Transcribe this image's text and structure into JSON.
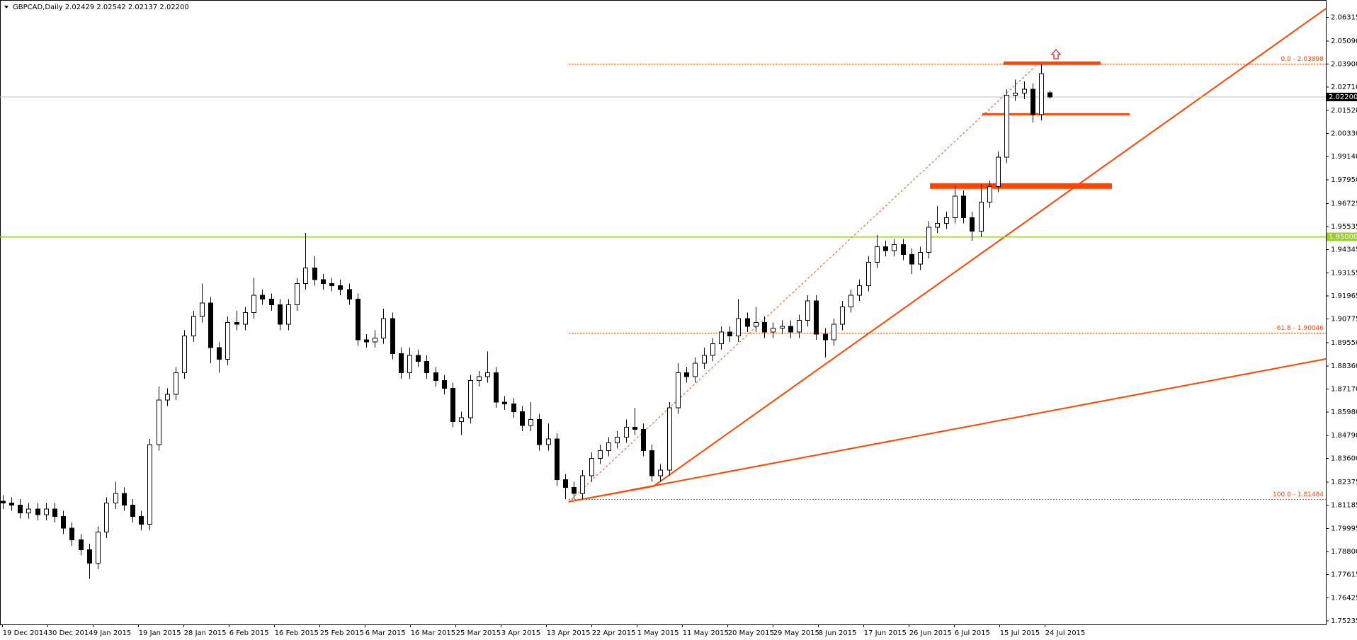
{
  "chart_data": {
    "type": "candlestick",
    "title": "GBPCAD,Daily  2.02429 2.02542 2.02137 2.02200",
    "xtick_labels": [
      "19 Dec 2014",
      "30 Dec 2014",
      "9 Jan 2015",
      "19 Jan 2015",
      "28 Jan 2015",
      "6 Feb 2015",
      "16 Feb 2015",
      "25 Feb 2015",
      "6 Mar 2015",
      "16 Mar 2015",
      "25 Mar 2015",
      "3 Apr 2015",
      "13 Apr 2015",
      "22 Apr 2015",
      "1 May 2015",
      "11 May 2015",
      "20 May 2015",
      "29 May 2015",
      "8 Jun 2015",
      "17 Jun 2015",
      "26 Jun 2015",
      "6 Jul 2015",
      "15 Jul 2015",
      "24 Jul 2015"
    ],
    "open": [
      1.814,
      1.813,
      1.812,
      1.808,
      1.81,
      1.807,
      1.81,
      1.806,
      1.8,
      1.794,
      1.789,
      1.782,
      1.798,
      1.813,
      1.818,
      1.812,
      1.806,
      1.802,
      1.843,
      1.866,
      1.869,
      1.88,
      1.899,
      1.909,
      1.916,
      1.893,
      1.887,
      1.906,
      1.905,
      1.911,
      1.92,
      1.918,
      1.915,
      1.905,
      1.915,
      1.926,
      1.934,
      1.928,
      1.926,
      1.925,
      1.923,
      1.918,
      1.897,
      1.896,
      1.898,
      1.908,
      1.89,
      1.88,
      1.889,
      1.886,
      1.88,
      1.876,
      1.872,
      1.855,
      1.857,
      1.876,
      1.878,
      1.88,
      1.865,
      1.864,
      1.86,
      1.853,
      1.856,
      1.843,
      1.846,
      1.825,
      1.821,
      1.818,
      1.827,
      1.836,
      1.84,
      1.844,
      1.847,
      1.852,
      1.851,
      1.84,
      1.827,
      1.83,
      1.862,
      1.88,
      1.878,
      1.885,
      1.889,
      1.895,
      1.901,
      1.899,
      1.908,
      1.904,
      1.906,
      1.901,
      1.903,
      1.904,
      1.901,
      1.907,
      1.917,
      1.9,
      1.897,
      1.905,
      1.914,
      1.92,
      1.925,
      1.937,
      1.945,
      1.943,
      1.946,
      1.941,
      1.936,
      1.942,
      1.955,
      1.957,
      1.96,
      1.971,
      1.96,
      1.953,
      1.968,
      1.976,
      1.991,
      2.023,
      2.024,
      2.026,
      2.013,
      2.02429
    ],
    "high": [
      1.817,
      1.816,
      1.815,
      1.813,
      1.813,
      1.813,
      1.813,
      1.809,
      1.803,
      1.797,
      1.792,
      1.801,
      1.816,
      1.824,
      1.821,
      1.815,
      1.809,
      1.846,
      1.873,
      1.872,
      1.883,
      1.902,
      1.912,
      1.926,
      1.919,
      1.896,
      1.909,
      1.912,
      1.914,
      1.929,
      1.923,
      1.921,
      1.918,
      1.918,
      1.929,
      1.952,
      1.94,
      1.931,
      1.929,
      1.928,
      1.926,
      1.921,
      1.9,
      1.902,
      1.913,
      1.911,
      1.893,
      1.893,
      1.892,
      1.889,
      1.883,
      1.879,
      1.875,
      1.86,
      1.879,
      1.881,
      1.891,
      1.883,
      1.868,
      1.867,
      1.863,
      1.865,
      1.859,
      1.854,
      1.849,
      1.828,
      1.824,
      1.83,
      1.839,
      1.843,
      1.847,
      1.85,
      1.856,
      1.862,
      1.854,
      1.843,
      1.833,
      1.865,
      1.885,
      1.883,
      1.888,
      1.893,
      1.898,
      1.904,
      1.904,
      1.918,
      1.911,
      1.914,
      1.909,
      1.906,
      1.907,
      1.907,
      1.91,
      1.92,
      1.92,
      1.903,
      1.908,
      1.917,
      1.923,
      1.928,
      1.94,
      1.951,
      1.948,
      1.949,
      1.949,
      1.944,
      1.945,
      1.958,
      1.966,
      1.963,
      1.976,
      1.974,
      1.963,
      1.977,
      1.979,
      1.994,
      2.026,
      2.031,
      2.03,
      2.029,
      2.039,
      2.02542
    ],
    "low": [
      1.81,
      1.809,
      1.805,
      1.805,
      1.804,
      1.804,
      1.803,
      1.797,
      1.791,
      1.786,
      1.774,
      1.779,
      1.795,
      1.81,
      1.809,
      1.803,
      1.799,
      1.799,
      1.84,
      1.863,
      1.866,
      1.877,
      1.896,
      1.906,
      1.885,
      1.88,
      1.884,
      1.902,
      1.902,
      1.908,
      1.915,
      1.912,
      1.902,
      1.902,
      1.912,
      1.923,
      1.925,
      1.923,
      1.922,
      1.92,
      1.915,
      1.894,
      1.893,
      1.893,
      1.895,
      1.887,
      1.877,
      1.877,
      1.883,
      1.877,
      1.873,
      1.869,
      1.852,
      1.848,
      1.854,
      1.873,
      1.875,
      1.862,
      1.861,
      1.857,
      1.85,
      1.85,
      1.84,
      1.84,
      1.822,
      1.815,
      1.815,
      1.815,
      1.824,
      1.833,
      1.837,
      1.841,
      1.844,
      1.848,
      1.837,
      1.824,
      1.824,
      1.827,
      1.859,
      1.875,
      1.875,
      1.882,
      1.886,
      1.892,
      1.896,
      1.896,
      1.901,
      1.901,
      1.898,
      1.898,
      1.9,
      1.898,
      1.898,
      1.904,
      1.897,
      1.888,
      1.894,
      1.902,
      1.911,
      1.917,
      1.922,
      1.934,
      1.94,
      1.94,
      1.938,
      1.931,
      1.933,
      1.939,
      1.952,
      1.954,
      1.957,
      1.957,
      1.948,
      1.95,
      1.965,
      1.973,
      1.988,
      2.02,
      2.021,
      2.009,
      2.01,
      2.02137
    ],
    "close": [
      1.813,
      1.812,
      1.808,
      1.81,
      1.807,
      1.81,
      1.806,
      1.8,
      1.794,
      1.789,
      1.782,
      1.798,
      1.813,
      1.818,
      1.812,
      1.806,
      1.802,
      1.843,
      1.866,
      1.869,
      1.88,
      1.899,
      1.909,
      1.916,
      1.893,
      1.887,
      1.906,
      1.905,
      1.911,
      1.92,
      1.918,
      1.915,
      1.905,
      1.915,
      1.926,
      1.934,
      1.928,
      1.926,
      1.925,
      1.923,
      1.918,
      1.897,
      1.896,
      1.898,
      1.908,
      1.89,
      1.88,
      1.889,
      1.886,
      1.88,
      1.876,
      1.872,
      1.855,
      1.857,
      1.876,
      1.878,
      1.88,
      1.865,
      1.864,
      1.86,
      1.853,
      1.856,
      1.843,
      1.846,
      1.825,
      1.821,
      1.818,
      1.827,
      1.836,
      1.84,
      1.844,
      1.847,
      1.852,
      1.851,
      1.84,
      1.827,
      1.83,
      1.862,
      1.88,
      1.878,
      1.885,
      1.889,
      1.895,
      1.901,
      1.899,
      1.908,
      1.904,
      1.906,
      1.901,
      1.903,
      1.904,
      1.901,
      1.907,
      1.917,
      1.9,
      1.897,
      1.905,
      1.914,
      1.92,
      1.925,
      1.937,
      1.945,
      1.943,
      1.946,
      1.941,
      1.936,
      1.942,
      1.955,
      1.957,
      1.96,
      1.971,
      1.96,
      1.953,
      1.968,
      1.976,
      1.991,
      2.023,
      2.024,
      2.026,
      2.013,
      2.034,
      2.022
    ],
    "ylim": [
      1.7505,
      2.072
    ],
    "yticks": [
      {
        "value": 2.06315,
        "label": "2.06315"
      },
      {
        "value": 2.0509,
        "label": "2.05090"
      },
      {
        "value": 2.039,
        "label": "2.03900"
      },
      {
        "value": 2.0271,
        "label": "2.02710"
      },
      {
        "value": 2.0152,
        "label": "2.01520"
      },
      {
        "value": 2.0033,
        "label": "2.00330"
      },
      {
        "value": 1.9914,
        "label": "1.99140"
      },
      {
        "value": 1.9795,
        "label": "1.97950"
      },
      {
        "value": 1.96725,
        "label": "1.96725"
      },
      {
        "value": 1.95535,
        "label": "1.95535"
      },
      {
        "value": 1.94345,
        "label": "1.94345"
      },
      {
        "value": 1.93155,
        "label": "1.93155"
      },
      {
        "value": 1.91965,
        "label": "1.91965"
      },
      {
        "value": 1.90775,
        "label": "1.90775"
      },
      {
        "value": 1.8955,
        "label": "1.89550"
      },
      {
        "value": 1.8836,
        "label": "1.88360"
      },
      {
        "value": 1.8717,
        "label": "1.87170"
      },
      {
        "value": 1.8598,
        "label": "1.85980"
      },
      {
        "value": 1.8479,
        "label": "1.84790"
      },
      {
        "value": 1.836,
        "label": "1.83600"
      },
      {
        "value": 1.82375,
        "label": "1.82375"
      },
      {
        "value": 1.81185,
        "label": "1.81185"
      },
      {
        "value": 1.79995,
        "label": "1.79995"
      },
      {
        "value": 1.788,
        "label": "1.78800"
      },
      {
        "value": 1.77615,
        "label": "1.77615"
      },
      {
        "value": 1.76425,
        "label": "1.76425"
      },
      {
        "value": 1.75235,
        "label": "1.75235"
      }
    ],
    "levels": [
      {
        "value": 1.95,
        "label": "1.95000",
        "color": "#9acd32"
      },
      {
        "value": 2.022,
        "label": "2.02200",
        "color": "#c0c0c0"
      }
    ],
    "fib_levels": [
      {
        "value": 2.03898,
        "label": "0.0 - 2.03898"
      },
      {
        "value": 1.90046,
        "label": "61.8 - 1.90046"
      },
      {
        "value": 1.81484,
        "label": "100.0 - 1.81484"
      }
    ],
    "fib_color": "#ff4500"
  }
}
